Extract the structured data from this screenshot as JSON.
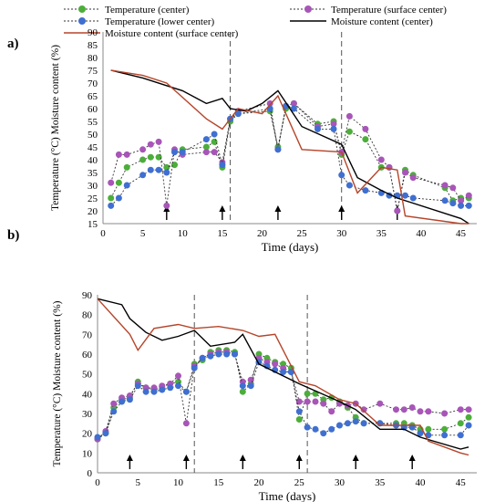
{
  "legend": {
    "items": [
      {
        "label": "Temperature (center)",
        "color": "#4cae3a",
        "marker": "circle-dash"
      },
      {
        "label": "Temperature (surface center)",
        "color": "#a855b8",
        "marker": "circle-dash"
      },
      {
        "label": "Temperature (lower center)",
        "color": "#3f6fd1",
        "marker": "circle-dash"
      },
      {
        "label": "Moisture content (center)",
        "color": "#000000",
        "marker": "line"
      },
      {
        "label": "Moisture content (surface center)",
        "color": "#b5452a",
        "marker": "line"
      }
    ]
  },
  "chart_data": [
    {
      "panel_label": "a)",
      "type": "line",
      "xlabel": "Time (days)",
      "ylabel": "Temperature (°C)  Moisture content (%)",
      "xlim": [
        0,
        47
      ],
      "ylim": [
        15,
        90
      ],
      "xticks": [
        0,
        5,
        10,
        15,
        20,
        25,
        30,
        35,
        40,
        45
      ],
      "yticks": [
        15,
        20,
        25,
        30,
        35,
        40,
        45,
        50,
        55,
        60,
        65,
        70,
        75,
        80,
        85,
        90
      ],
      "vlines": [
        16,
        30
      ],
      "arrows": [
        8,
        15,
        22,
        30,
        37
      ],
      "series": [
        {
          "name": "Temperature (center)",
          "color": "#4cae3a",
          "style": "dash-marker",
          "x": [
            1,
            2,
            3,
            5,
            6,
            7,
            8,
            9,
            10,
            13,
            14,
            15,
            16,
            17,
            21,
            22,
            23,
            24,
            27,
            29,
            30,
            31,
            33,
            35,
            36,
            37,
            38,
            39,
            43,
            44,
            45,
            46
          ],
          "y": [
            25,
            31,
            37,
            40,
            41,
            41,
            37,
            38,
            44,
            45,
            47,
            37,
            55,
            58,
            59,
            45,
            60,
            62,
            54,
            55,
            42,
            51,
            48,
            37,
            37,
            20,
            36,
            34,
            29,
            24,
            25,
            25
          ]
        },
        {
          "name": "Temperature (surface center)",
          "color": "#a855b8",
          "style": "dash-marker",
          "x": [
            1,
            2,
            3,
            5,
            6,
            7,
            8,
            9,
            10,
            13,
            14,
            15,
            16,
            17,
            21,
            22,
            23,
            24,
            27,
            29,
            30,
            31,
            33,
            35,
            36,
            37,
            38,
            39,
            43,
            44,
            45,
            46
          ],
          "y": [
            31,
            42,
            42,
            44,
            46,
            47,
            22,
            44,
            42,
            43,
            43,
            39,
            56,
            59,
            62,
            44,
            61,
            62,
            53,
            54,
            43,
            57,
            52,
            40,
            37,
            20,
            35,
            33,
            30,
            29,
            24,
            26
          ]
        },
        {
          "name": "Temperature (lower center)",
          "color": "#3f6fd1",
          "style": "dash-marker",
          "x": [
            1,
            2,
            3,
            5,
            6,
            7,
            8,
            9,
            10,
            13,
            14,
            15,
            16,
            17,
            21,
            22,
            23,
            24,
            27,
            29,
            30,
            31,
            33,
            35,
            36,
            37,
            38,
            39,
            43,
            44,
            45,
            46
          ],
          "y": [
            22,
            25,
            30,
            34,
            36,
            36,
            35,
            43,
            43,
            48,
            50,
            38,
            56,
            58,
            60,
            44,
            61,
            60,
            52,
            52,
            34,
            30,
            28,
            27,
            26,
            26,
            26,
            25,
            24,
            23,
            22,
            22
          ]
        },
        {
          "name": "Moisture content (center)",
          "color": "#000000",
          "style": "solid",
          "x": [
            1,
            5,
            10,
            13,
            15,
            16,
            18,
            20,
            22,
            25,
            30,
            32,
            35,
            37,
            45,
            46
          ],
          "y": [
            75,
            72,
            67,
            62,
            64,
            60,
            59,
            62,
            67,
            53,
            46,
            33,
            28,
            25,
            17,
            15
          ]
        },
        {
          "name": "Moisture content (surface center)",
          "color": "#b5452a",
          "style": "solid",
          "x": [
            1,
            5,
            8,
            13,
            15,
            17,
            20,
            22,
            25,
            30,
            32,
            35,
            37,
            38,
            45,
            46
          ],
          "y": [
            75,
            73,
            70,
            56,
            52,
            60,
            58,
            65,
            44,
            43,
            27,
            37,
            36,
            18,
            15,
            15
          ]
        }
      ]
    },
    {
      "panel_label": "b)",
      "type": "line",
      "xlabel": "Time (days)",
      "ylabel": "Temperature (°C)  Moisture content (%)",
      "xlim": [
        0,
        47
      ],
      "ylim": [
        0,
        90
      ],
      "xticks": [
        0,
        5,
        10,
        15,
        20,
        25,
        30,
        35,
        40,
        45
      ],
      "yticks": [
        0,
        10,
        20,
        30,
        40,
        50,
        60,
        70,
        80,
        90
      ],
      "vlines": [
        12,
        26
      ],
      "arrows": [
        4,
        11,
        18,
        25,
        32,
        39
      ],
      "series": [
        {
          "name": "Temperature (center)",
          "color": "#4cae3a",
          "style": "dash-marker",
          "x": [
            0,
            1,
            2,
            3,
            4,
            5,
            6,
            7,
            8,
            9,
            10,
            11,
            12,
            13,
            14,
            15,
            16,
            17,
            18,
            19,
            20,
            21,
            22,
            23,
            24,
            25,
            26,
            27,
            28,
            29,
            30,
            31,
            32,
            33,
            35,
            37,
            38,
            39,
            40,
            41,
            43,
            45,
            46
          ],
          "y": [
            17,
            20,
            33,
            37,
            38,
            46,
            43,
            42,
            43,
            45,
            46,
            41,
            55,
            57,
            61,
            62,
            62,
            61,
            41,
            45,
            60,
            58,
            56,
            55,
            53,
            27,
            40,
            40,
            37,
            38,
            36,
            33,
            28,
            25,
            25,
            25,
            25,
            24,
            22,
            22,
            22,
            25,
            28
          ]
        },
        {
          "name": "Temperature (surface center)",
          "color": "#a855b8",
          "style": "dash-marker",
          "x": [
            0,
            1,
            2,
            3,
            4,
            5,
            6,
            7,
            8,
            9,
            10,
            11,
            12,
            13,
            14,
            15,
            16,
            17,
            18,
            19,
            20,
            21,
            22,
            23,
            24,
            25,
            26,
            27,
            28,
            29,
            30,
            31,
            32,
            33,
            35,
            37,
            38,
            39,
            40,
            41,
            43,
            45,
            46
          ],
          "y": [
            17,
            21,
            35,
            38,
            39,
            45,
            43,
            43,
            44,
            45,
            49,
            25,
            54,
            58,
            60,
            61,
            61,
            60,
            46,
            47,
            58,
            56,
            55,
            53,
            51,
            36,
            36,
            36,
            35,
            31,
            35,
            34,
            35,
            32,
            35,
            32,
            32,
            33,
            31,
            31,
            30,
            32,
            32
          ]
        },
        {
          "name": "Temperature (lower center)",
          "color": "#3f6fd1",
          "style": "dash-marker",
          "x": [
            0,
            1,
            2,
            3,
            4,
            5,
            6,
            7,
            8,
            9,
            10,
            11,
            12,
            13,
            14,
            15,
            16,
            17,
            18,
            19,
            20,
            21,
            22,
            23,
            24,
            25,
            26,
            27,
            28,
            29,
            30,
            31,
            32,
            33,
            35,
            37,
            38,
            39,
            40,
            41,
            43,
            45,
            46
          ],
          "y": [
            18,
            20,
            31,
            36,
            37,
            44,
            41,
            41,
            42,
            43,
            44,
            41,
            53,
            58,
            59,
            60,
            60,
            60,
            44,
            44,
            56,
            54,
            52,
            51,
            51,
            31,
            23,
            22,
            20,
            22,
            24,
            25,
            26,
            25,
            25,
            24,
            23,
            23,
            20,
            19,
            19,
            19,
            24
          ]
        },
        {
          "name": "Moisture content (center)",
          "color": "#000000",
          "style": "solid",
          "x": [
            0,
            3,
            4,
            6,
            8,
            10,
            12,
            14,
            17,
            18,
            20,
            25,
            30,
            32,
            35,
            38,
            40,
            45,
            46
          ],
          "y": [
            88,
            85,
            78,
            71,
            67,
            69,
            72,
            64,
            66,
            70,
            55,
            45,
            36,
            32,
            22,
            22,
            18,
            12,
            13
          ]
        },
        {
          "name": "Moisture content (surface center)",
          "color": "#b5452a",
          "style": "solid",
          "x": [
            0,
            4,
            5,
            7,
            10,
            12,
            15,
            18,
            20,
            22,
            25,
            27,
            30,
            32,
            35,
            38,
            40,
            41,
            45,
            46
          ],
          "y": [
            88,
            70,
            62,
            73,
            75,
            73,
            74,
            72,
            69,
            70,
            46,
            44,
            37,
            35,
            24,
            24,
            24,
            16,
            10,
            9
          ]
        }
      ]
    }
  ]
}
